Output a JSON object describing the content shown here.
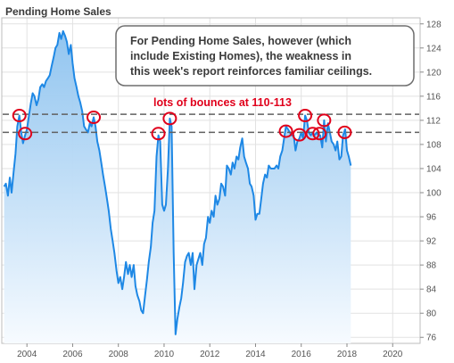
{
  "chart_data": {
    "type": "area",
    "title": "Pending Home Sales",
    "x_ticks": [
      "2004",
      "2006",
      "2008",
      "2010",
      "2012",
      "2014",
      "2016",
      "2018",
      "2020"
    ],
    "y_ticks": [
      "76",
      "80",
      "84",
      "88",
      "92",
      "96",
      "100",
      "104",
      "108",
      "112",
      "116",
      "120",
      "124",
      "128"
    ],
    "xlim": [
      2002.9,
      2021.2
    ],
    "ylim": [
      75,
      129
    ],
    "grid": true,
    "y_axis_side": "right",
    "series": [
      {
        "color": "#1e88e5",
        "points": [
          [
            2003.0,
            101.0
          ],
          [
            2003.08,
            101.5
          ],
          [
            2003.17,
            99.5
          ],
          [
            2003.25,
            102.5
          ],
          [
            2003.33,
            100.0
          ],
          [
            2003.42,
            103.5
          ],
          [
            2003.5,
            106.5
          ],
          [
            2003.58,
            111.0
          ],
          [
            2003.67,
            112.8
          ],
          [
            2003.75,
            110.0
          ],
          [
            2003.83,
            108.2
          ],
          [
            2003.92,
            109.5
          ],
          [
            2004.0,
            110.5
          ],
          [
            2004.08,
            112.5
          ],
          [
            2004.17,
            114.8
          ],
          [
            2004.25,
            116.5
          ],
          [
            2004.33,
            116.0
          ],
          [
            2004.42,
            114.5
          ],
          [
            2004.5,
            115.5
          ],
          [
            2004.58,
            117.5
          ],
          [
            2004.67,
            118.0
          ],
          [
            2004.75,
            117.5
          ],
          [
            2004.83,
            118.5
          ],
          [
            2004.92,
            119.0
          ],
          [
            2005.0,
            119.5
          ],
          [
            2005.08,
            121.0
          ],
          [
            2005.17,
            122.5
          ],
          [
            2005.25,
            124.0
          ],
          [
            2005.33,
            124.5
          ],
          [
            2005.42,
            126.5
          ],
          [
            2005.5,
            125.5
          ],
          [
            2005.58,
            126.8
          ],
          [
            2005.67,
            126.0
          ],
          [
            2005.75,
            125.0
          ],
          [
            2005.83,
            123.0
          ],
          [
            2005.92,
            124.5
          ],
          [
            2006.0,
            121.5
          ],
          [
            2006.08,
            119.0
          ],
          [
            2006.17,
            117.5
          ],
          [
            2006.25,
            116.0
          ],
          [
            2006.33,
            115.0
          ],
          [
            2006.42,
            113.5
          ],
          [
            2006.5,
            111.0
          ],
          [
            2006.58,
            110.5
          ],
          [
            2006.67,
            110.0
          ],
          [
            2006.75,
            111.5
          ],
          [
            2006.83,
            111.0
          ],
          [
            2006.92,
            112.5
          ],
          [
            2007.0,
            111.0
          ],
          [
            2007.08,
            108.5
          ],
          [
            2007.17,
            107.0
          ],
          [
            2007.25,
            105.0
          ],
          [
            2007.33,
            103.0
          ],
          [
            2007.42,
            101.0
          ],
          [
            2007.5,
            99.0
          ],
          [
            2007.58,
            97.0
          ],
          [
            2007.67,
            94.0
          ],
          [
            2007.75,
            92.0
          ],
          [
            2007.83,
            90.0
          ],
          [
            2007.92,
            87.0
          ],
          [
            2008.0,
            85.0
          ],
          [
            2008.08,
            86.0
          ],
          [
            2008.17,
            84.0
          ],
          [
            2008.25,
            86.0
          ],
          [
            2008.33,
            88.5
          ],
          [
            2008.42,
            86.5
          ],
          [
            2008.5,
            88.0
          ],
          [
            2008.58,
            86.0
          ],
          [
            2008.67,
            88.0
          ],
          [
            2008.75,
            84.5
          ],
          [
            2008.83,
            83.0
          ],
          [
            2008.92,
            82.0
          ],
          [
            2009.0,
            80.5
          ],
          [
            2009.08,
            80.0
          ],
          [
            2009.17,
            83.0
          ],
          [
            2009.25,
            85.5
          ],
          [
            2009.33,
            88.5
          ],
          [
            2009.42,
            91.0
          ],
          [
            2009.5,
            95.0
          ],
          [
            2009.58,
            97.0
          ],
          [
            2009.67,
            106.0
          ],
          [
            2009.75,
            109.5
          ],
          [
            2009.83,
            108.5
          ],
          [
            2009.92,
            98.0
          ],
          [
            2010.0,
            97.0
          ],
          [
            2010.08,
            98.0
          ],
          [
            2010.17,
            104.0
          ],
          [
            2010.25,
            112.3
          ],
          [
            2010.33,
            111.0
          ],
          [
            2010.42,
            90.0
          ],
          [
            2010.5,
            76.5
          ],
          [
            2010.58,
            79.0
          ],
          [
            2010.67,
            81.0
          ],
          [
            2010.75,
            82.5
          ],
          [
            2010.83,
            85.0
          ],
          [
            2010.92,
            88.5
          ],
          [
            2011.0,
            89.5
          ],
          [
            2011.08,
            90.0
          ],
          [
            2011.17,
            88.0
          ],
          [
            2011.25,
            90.0
          ],
          [
            2011.33,
            84.0
          ],
          [
            2011.42,
            88.0
          ],
          [
            2011.5,
            89.0
          ],
          [
            2011.58,
            90.0
          ],
          [
            2011.67,
            88.0
          ],
          [
            2011.75,
            91.5
          ],
          [
            2011.83,
            92.5
          ],
          [
            2011.92,
            96.0
          ],
          [
            2012.0,
            95.0
          ],
          [
            2012.08,
            97.0
          ],
          [
            2012.17,
            96.0
          ],
          [
            2012.25,
            99.5
          ],
          [
            2012.33,
            98.0
          ],
          [
            2012.42,
            99.0
          ],
          [
            2012.5,
            101.5
          ],
          [
            2012.58,
            101.0
          ],
          [
            2012.67,
            99.5
          ],
          [
            2012.75,
            104.5
          ],
          [
            2012.83,
            104.0
          ],
          [
            2012.92,
            103.0
          ],
          [
            2013.0,
            105.0
          ],
          [
            2013.08,
            104.0
          ],
          [
            2013.17,
            106.0
          ],
          [
            2013.25,
            105.5
          ],
          [
            2013.33,
            107.5
          ],
          [
            2013.42,
            109.0
          ],
          [
            2013.5,
            106.0
          ],
          [
            2013.58,
            105.0
          ],
          [
            2013.67,
            104.0
          ],
          [
            2013.75,
            101.5
          ],
          [
            2013.83,
            101.0
          ],
          [
            2013.92,
            99.5
          ],
          [
            2014.0,
            95.5
          ],
          [
            2014.08,
            96.5
          ],
          [
            2014.17,
            96.5
          ],
          [
            2014.25,
            99.0
          ],
          [
            2014.33,
            101.5
          ],
          [
            2014.42,
            103.0
          ],
          [
            2014.5,
            102.5
          ],
          [
            2014.58,
            104.5
          ],
          [
            2014.67,
            104.0
          ],
          [
            2014.75,
            104.0
          ],
          [
            2014.83,
            104.0
          ],
          [
            2014.92,
            104.5
          ],
          [
            2015.0,
            104.0
          ],
          [
            2015.08,
            106.0
          ],
          [
            2015.17,
            107.0
          ],
          [
            2015.25,
            109.0
          ],
          [
            2015.33,
            111.0
          ],
          [
            2015.42,
            110.5
          ],
          [
            2015.5,
            110.0
          ],
          [
            2015.58,
            109.5
          ],
          [
            2015.67,
            109.5
          ],
          [
            2015.75,
            107.0
          ],
          [
            2015.83,
            108.5
          ],
          [
            2015.92,
            109.0
          ],
          [
            2016.0,
            110.0
          ],
          [
            2016.08,
            109.0
          ],
          [
            2016.17,
            112.8
          ],
          [
            2016.25,
            112.0
          ],
          [
            2016.33,
            110.0
          ],
          [
            2016.42,
            109.5
          ],
          [
            2016.5,
            110.0
          ],
          [
            2016.58,
            109.5
          ],
          [
            2016.67,
            110.0
          ],
          [
            2016.75,
            109.5
          ],
          [
            2016.83,
            109.5
          ],
          [
            2016.92,
            107.5
          ],
          [
            2017.0,
            112.0
          ],
          [
            2017.08,
            108.5
          ],
          [
            2017.17,
            111.5
          ],
          [
            2017.25,
            110.0
          ],
          [
            2017.33,
            108.5
          ],
          [
            2017.42,
            108.0
          ],
          [
            2017.5,
            107.0
          ],
          [
            2017.58,
            108.5
          ],
          [
            2017.67,
            105.5
          ],
          [
            2017.75,
            106.0
          ],
          [
            2017.83,
            109.5
          ],
          [
            2017.92,
            110.5
          ],
          [
            2018.0,
            107.0
          ],
          [
            2018.08,
            106.0
          ],
          [
            2018.17,
            104.5
          ]
        ]
      }
    ],
    "reference_lines": [
      113,
      110
    ],
    "highlight_circles": [
      [
        2003.67,
        112.8
      ],
      [
        2003.92,
        109.8
      ],
      [
        2006.92,
        112.5
      ],
      [
        2009.75,
        109.8
      ],
      [
        2010.25,
        112.3
      ],
      [
        2015.33,
        110.2
      ],
      [
        2015.92,
        109.6
      ],
      [
        2016.17,
        112.8
      ],
      [
        2016.5,
        109.8
      ],
      [
        2016.8,
        109.8
      ],
      [
        2017.0,
        112.0
      ],
      [
        2017.9,
        110.0
      ]
    ],
    "annotation_label": "lots of bounces at 110-113",
    "callout": {
      "lines": [
        "For Pending Home Sales, however (which",
        "include Existing Homes), the weakness in",
        "this week's report reinforces familiar ceilings."
      ]
    },
    "colors": {
      "line": "#1e88e5",
      "fill_top": "#8cc2ef",
      "fill_bottom": "#f7fbff",
      "reference_line": "#606060",
      "highlight": "#e0001b",
      "grid": "#e2e2e2"
    }
  }
}
